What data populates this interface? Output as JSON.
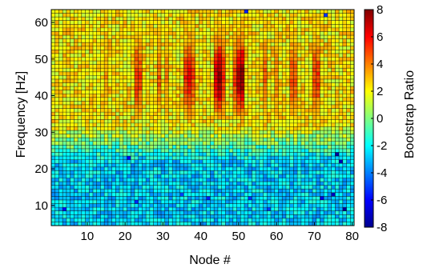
{
  "chart_data": {
    "type": "heatmap",
    "xlabel": "Node #",
    "ylabel": "Frequency [Hz]",
    "x_ticks": [
      10,
      20,
      30,
      40,
      50,
      60,
      70,
      80
    ],
    "y_ticks": [
      10,
      20,
      30,
      40,
      50,
      60
    ],
    "xlim": [
      1,
      80
    ],
    "ylim": [
      5,
      63
    ],
    "n_nodes": 80,
    "n_freqs": 59,
    "grid": true,
    "colorbar": {
      "label": "Bootstrap Ratio",
      "ticks": [
        8,
        6,
        4,
        2,
        0,
        -2,
        -4,
        -6,
        -8
      ],
      "range": [
        -8,
        8
      ],
      "colormap": "jet",
      "position": "right"
    },
    "values_description_free": false,
    "pattern": {
      "high_band_hz": [
        32,
        63
      ],
      "high_band_mean": 2.2,
      "low_band_hz": [
        5,
        22
      ],
      "low_band_mean": -2.6,
      "hot_nodes": [
        {
          "node": 15,
          "peak": 3.5
        },
        {
          "node": 23,
          "peak": 5.2
        },
        {
          "node": 24,
          "peak": 5.0
        },
        {
          "node": 29,
          "peak": 4.5
        },
        {
          "node": 31,
          "peak": 3.8
        },
        {
          "node": 36,
          "peak": 5.3
        },
        {
          "node": 37,
          "peak": 6.3
        },
        {
          "node": 38,
          "peak": 5.0
        },
        {
          "node": 44,
          "peak": 6.5
        },
        {
          "node": 45,
          "peak": 7.8
        },
        {
          "node": 46,
          "peak": 5.5
        },
        {
          "node": 49,
          "peak": 5.2
        },
        {
          "node": 50,
          "peak": 7.3
        },
        {
          "node": 51,
          "peak": 8.0
        },
        {
          "node": 57,
          "peak": 4.5
        },
        {
          "node": 60,
          "peak": 4.0
        },
        {
          "node": 64,
          "peak": 4.8
        },
        {
          "node": 65,
          "peak": 4.5
        },
        {
          "node": 70,
          "peak": 5.0
        },
        {
          "node": 71,
          "peak": 5.2
        }
      ],
      "cold_cells": [
        {
          "node": 76,
          "hz": 24,
          "value": -7.5
        },
        {
          "node": 77,
          "hz": 22,
          "value": -7.2
        },
        {
          "node": 75,
          "hz": 13,
          "value": -7.0
        },
        {
          "node": 78,
          "hz": 9,
          "value": -7.6
        },
        {
          "node": 72,
          "hz": 12,
          "value": -6.4
        },
        {
          "node": 21,
          "hz": 23,
          "value": -6.0
        },
        {
          "node": 23,
          "hz": 11,
          "value": -5.4
        },
        {
          "node": 4,
          "hz": 9,
          "value": -5.8
        },
        {
          "node": 42,
          "hz": 12,
          "value": -5.5
        },
        {
          "node": 53,
          "hz": 12,
          "value": -5.2
        },
        {
          "node": 58,
          "hz": 9,
          "value": -5.0
        },
        {
          "node": 35,
          "hz": 13,
          "value": -5.0
        },
        {
          "node": 52,
          "hz": 63,
          "value": -5.5
        },
        {
          "node": 73,
          "hz": 62,
          "value": -5.2
        }
      ]
    }
  }
}
